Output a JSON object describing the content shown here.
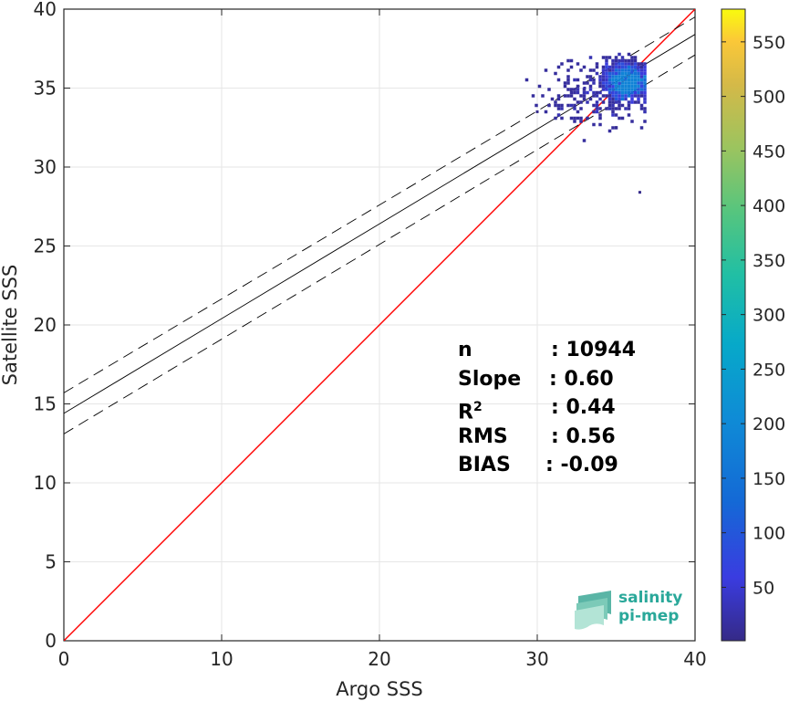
{
  "chart_data": {
    "type": "scatter",
    "subtype": "density-scatter",
    "xlabel": "Argo SSS",
    "ylabel": "Satellite SSS",
    "xlim": [
      0,
      40
    ],
    "ylim": [
      0,
      40
    ],
    "xticks": [
      0,
      10,
      20,
      30,
      40
    ],
    "yticks": [
      0,
      5,
      10,
      15,
      20,
      25,
      30,
      35,
      40
    ],
    "grid": true,
    "colorbar": {
      "colormap": "parula",
      "range": [
        1,
        580
      ],
      "ticks": [
        50,
        100,
        150,
        200,
        250,
        300,
        350,
        400,
        450,
        500,
        550
      ]
    },
    "lines": [
      {
        "name": "1:1 line",
        "color": "#ff0000",
        "style": "solid",
        "x": [
          0,
          40
        ],
        "y": [
          0,
          40
        ]
      },
      {
        "name": "regression fit",
        "color": "#000000",
        "style": "solid",
        "x": [
          0,
          40
        ],
        "y": [
          14.4,
          38.4
        ]
      },
      {
        "name": "upper bound",
        "color": "#000000",
        "style": "dashed",
        "x": [
          0,
          40
        ],
        "y": [
          15.7,
          39.5
        ]
      },
      {
        "name": "lower bound",
        "color": "#000000",
        "style": "dashed",
        "x": [
          0,
          40
        ],
        "y": [
          13.1,
          37.1
        ]
      }
    ],
    "points": [
      {
        "x": 35.6,
        "y": 35.6,
        "density": 120
      },
      {
        "x": 35.2,
        "y": 35.3,
        "density": 80
      },
      {
        "x": 36.0,
        "y": 36.0,
        "density": 95
      },
      {
        "x": 34.8,
        "y": 35.1,
        "density": 60
      },
      {
        "x": 33.0,
        "y": 35.0,
        "density": 20
      },
      {
        "x": 30.0,
        "y": 33.5,
        "density": 5
      },
      {
        "x": 35.0,
        "y": 32.5,
        "density": 8
      },
      {
        "x": 36.5,
        "y": 28.4,
        "density": 3
      }
    ],
    "annotations": [
      {
        "key": "n",
        "value": ": 10944"
      },
      {
        "key": "Slope",
        "value": ": 0.60"
      },
      {
        "key": "R",
        "superscript": "2",
        "value": ": 0.44"
      },
      {
        "key": "RMS",
        "value": ": 0.56"
      },
      {
        "key": "BIAS",
        "value": ": -0.09"
      }
    ]
  },
  "logo": {
    "line1": "salinity",
    "line2": "pi-mep"
  },
  "colors": {
    "identity_line": "#ff0000",
    "fit_line": "#000000",
    "grid": "#e6e6e6",
    "logo_text": "#2aa89a"
  }
}
